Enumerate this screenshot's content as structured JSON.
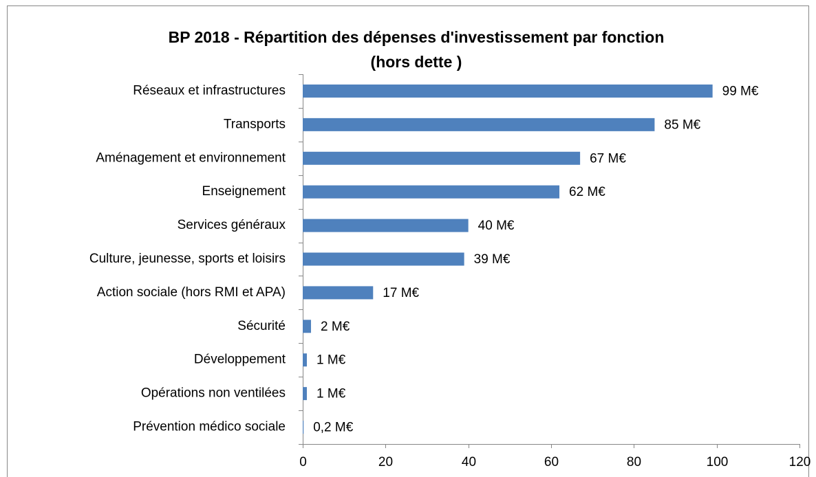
{
  "chart_data": {
    "type": "bar",
    "orientation": "horizontal",
    "title": [
      "BP 2018 - Répartition des dépenses d'investissement par fonction",
      "(hors dette )"
    ],
    "categories": [
      "Réseaux et infrastructures",
      "Transports",
      "Aménagement et environnement",
      "Enseignement",
      "Services généraux",
      "Culture, jeunesse, sports et loisirs",
      "Action sociale (hors RMI et APA)",
      "Sécurité",
      "Développement",
      "Opérations non ventilées",
      "Prévention médico sociale"
    ],
    "values": [
      99,
      85,
      67,
      62,
      40,
      39,
      17,
      2,
      1,
      1,
      0.2
    ],
    "value_labels": [
      "99 M€",
      "85 M€",
      "67 M€",
      "62 M€",
      "40 M€",
      "39 M€",
      "17 M€",
      "2 M€",
      "1 M€",
      "1 M€",
      "0,2 M€"
    ],
    "color": "#4f81bd",
    "xlim": [
      0,
      120
    ],
    "xticks": [
      0,
      20,
      40,
      60,
      80,
      100,
      120
    ],
    "grid": false
  }
}
